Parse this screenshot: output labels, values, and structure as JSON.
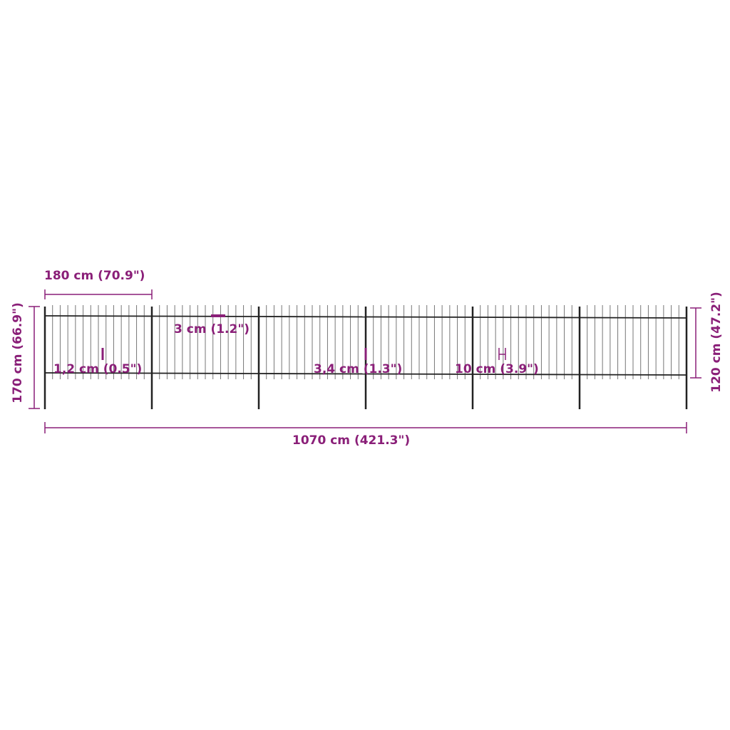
{
  "colors": {
    "dimension": "#8a1f78",
    "fence": "#222222"
  },
  "fence": {
    "panels": 6,
    "pickets_per_panel": 13
  },
  "dimensions": {
    "panel_width": "180 cm (70.9\")",
    "total_length": "1070 cm (421.3\")",
    "post_height": "170 cm (66.9\")",
    "fence_height": "120 cm (47.2\")",
    "rail_width": "3 cm (1.2\")",
    "picket_width": "1,2 cm (0.5\")",
    "picket_gap": "3,4 cm (1.3\")",
    "rail_spacing": "10 cm (3.9\")"
  }
}
